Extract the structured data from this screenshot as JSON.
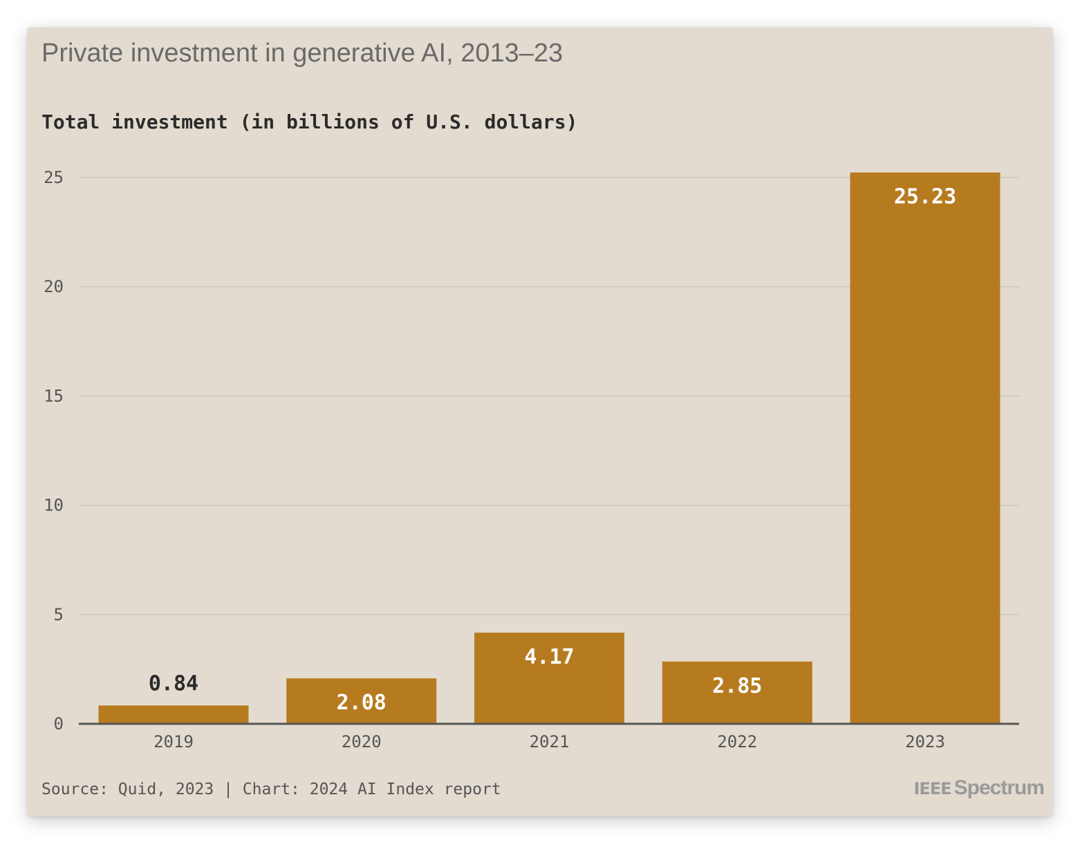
{
  "chart_data": {
    "type": "bar",
    "title": "Private investment in generative AI, 2013–23",
    "subtitle": "Total investment (in billions of U.S. dollars)",
    "categories": [
      "2019",
      "2020",
      "2021",
      "2022",
      "2023"
    ],
    "values": [
      0.84,
      2.08,
      4.17,
      2.85,
      25.23
    ],
    "value_labels": [
      "0.84",
      "2.08",
      "4.17",
      "2.85",
      "25.23"
    ],
    "xlabel": "",
    "ylabel": "",
    "ylim": [
      0,
      25
    ],
    "yticks": [
      0,
      5,
      10,
      15,
      20,
      25
    ],
    "grid": true,
    "bar_color": "#b77b1f",
    "source": "Source: Quid, 2023 | Chart: 2024 AI Index report"
  },
  "branding": {
    "ieee": "IEEE",
    "spectrum": "Spectrum"
  },
  "colors": {
    "background": "#e3dbcf",
    "bar": "#b77b1f",
    "grid": "#cfcac4",
    "axis": "#555555",
    "label_inside": "#ffffff",
    "label_outside": "#2b2b2b"
  }
}
